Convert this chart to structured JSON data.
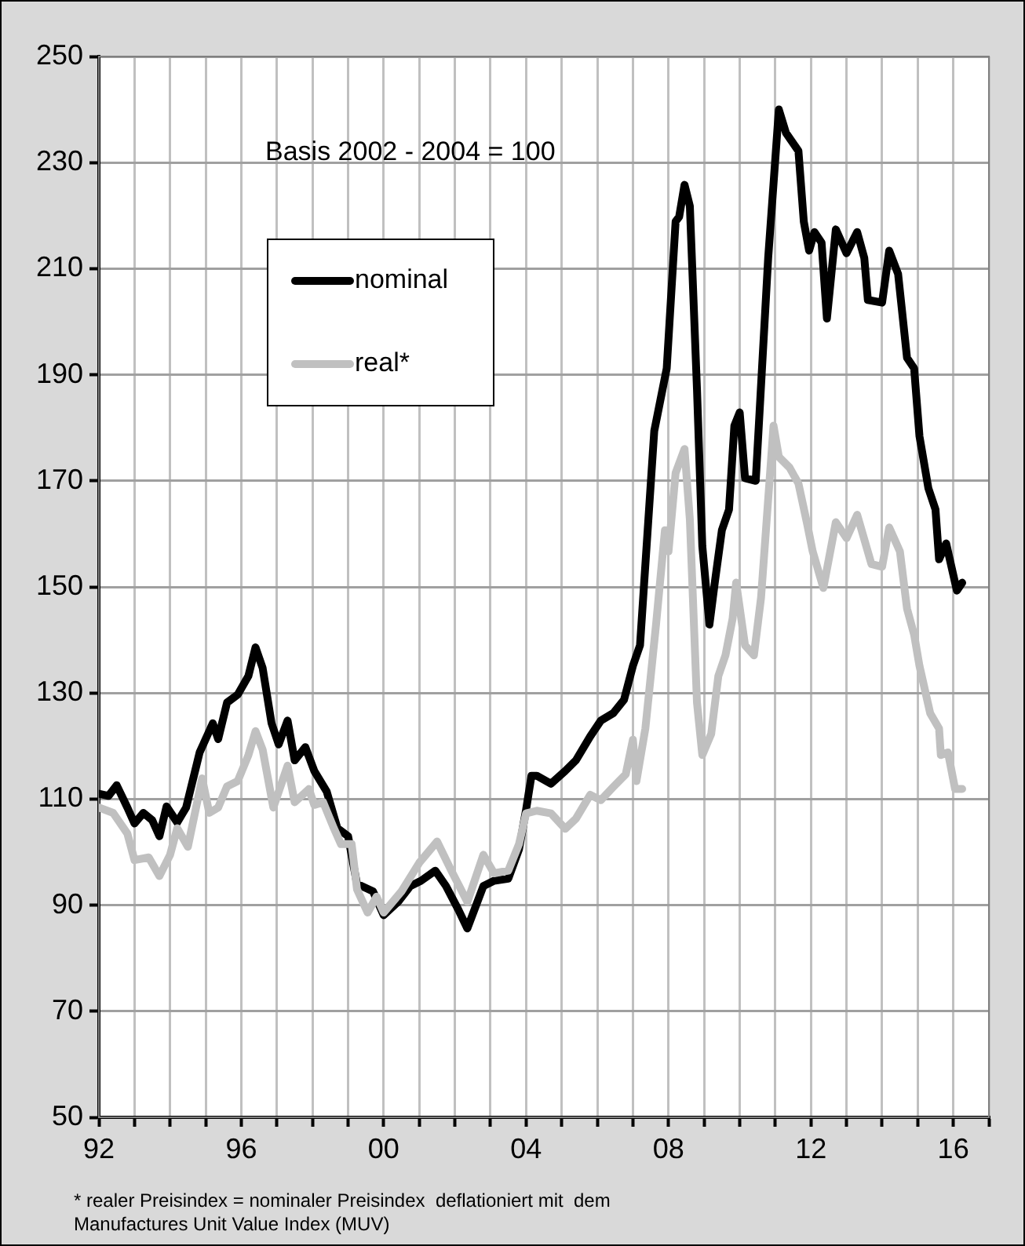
{
  "chart_data": {
    "type": "line",
    "xlim": [
      1992,
      2017
    ],
    "xticks": [
      {
        "value": 1992,
        "label": "92"
      },
      {
        "value": 1993,
        "label": null
      },
      {
        "value": 1994,
        "label": null
      },
      {
        "value": 1995,
        "label": null
      },
      {
        "value": 1996,
        "label": "96"
      },
      {
        "value": 1997,
        "label": null
      },
      {
        "value": 1998,
        "label": null
      },
      {
        "value": 1999,
        "label": null
      },
      {
        "value": 2000,
        "label": "00"
      },
      {
        "value": 2001,
        "label": null
      },
      {
        "value": 2002,
        "label": null
      },
      {
        "value": 2003,
        "label": null
      },
      {
        "value": 2004,
        "label": "04"
      },
      {
        "value": 2005,
        "label": null
      },
      {
        "value": 2006,
        "label": null
      },
      {
        "value": 2007,
        "label": null
      },
      {
        "value": 2008,
        "label": "08"
      },
      {
        "value": 2009,
        "label": null
      },
      {
        "value": 2010,
        "label": null
      },
      {
        "value": 2011,
        "label": null
      },
      {
        "value": 2012,
        "label": "12"
      },
      {
        "value": 2013,
        "label": null
      },
      {
        "value": 2014,
        "label": null
      },
      {
        "value": 2015,
        "label": null
      },
      {
        "value": 2016,
        "label": "16"
      },
      {
        "value": 2017,
        "label": null
      }
    ],
    "ylim": [
      50,
      250
    ],
    "yticks": [
      50,
      70,
      90,
      110,
      130,
      150,
      170,
      190,
      210,
      230,
      250
    ],
    "grid": true,
    "legend": "top left",
    "line_style": "solid",
    "marker": "none",
    "annotations": [
      "Basis 2002 - 2004 = 100",
      "* realer Preisindex = nominaler Preisindex  deflationiert mit  dem  Manufactures Unit Value Index (MUV)"
    ],
    "series": [
      {
        "name": "nominal",
        "color": "#000000",
        "x": [
          1992.0,
          1992.27,
          1992.5,
          1992.8,
          1993.0,
          1993.25,
          1993.5,
          1993.7,
          1993.9,
          1994.2,
          1994.45,
          1994.83,
          1995.2,
          1995.35,
          1995.6,
          1995.9,
          1996.2,
          1996.4,
          1996.6,
          1996.85,
          1997.05,
          1997.3,
          1997.5,
          1997.8,
          1998.05,
          1998.4,
          1998.7,
          1999.0,
          1999.25,
          1999.7,
          2000.0,
          2000.4,
          2000.75,
          2001.05,
          2001.45,
          2001.75,
          2002.1,
          2002.35,
          2002.8,
          2003.1,
          2003.5,
          2003.8,
          2004.0,
          2004.15,
          2004.3,
          2004.7,
          2005.1,
          2005.4,
          2005.8,
          2006.1,
          2006.45,
          2006.75,
          2007.0,
          2007.2,
          2007.6,
          2007.95,
          2008.2,
          2008.3,
          2008.45,
          2008.6,
          2008.8,
          2008.95,
          2009.15,
          2009.3,
          2009.5,
          2009.7,
          2009.85,
          2010.0,
          2010.15,
          2010.45,
          2010.8,
          2011.1,
          2011.3,
          2011.65,
          2011.8,
          2011.95,
          2012.1,
          2012.3,
          2012.45,
          2012.7,
          2013.0,
          2013.3,
          2013.5,
          2013.6,
          2014.0,
          2014.2,
          2014.45,
          2014.7,
          2014.9,
          2015.05,
          2015.3,
          2015.5,
          2015.6,
          2015.8,
          2016.1,
          2016.25
        ],
        "values": [
          111,
          110.6,
          112.6,
          108.4,
          105.4,
          107.4,
          106,
          103,
          108.6,
          105.6,
          108.4,
          118.8,
          124.3,
          121.3,
          128.2,
          129.7,
          133.2,
          138.6,
          134.7,
          124.3,
          120.3,
          124.8,
          117.3,
          119.8,
          115.3,
          111.4,
          104.5,
          103,
          94,
          92.6,
          88.1,
          90.6,
          93.6,
          94.6,
          96.5,
          93.6,
          89.1,
          85.6,
          93.6,
          94.6,
          95,
          100.5,
          108,
          114.4,
          114.4,
          112.9,
          115.3,
          117.3,
          121.8,
          124.8,
          126.2,
          128.7,
          135.1,
          139,
          179.4,
          191.2,
          218.9,
          219.8,
          225.8,
          221.8,
          187.3,
          157.7,
          142.9,
          150.8,
          160.7,
          164.6,
          180.4,
          182.9,
          170.5,
          170,
          212,
          240,
          235.6,
          232.2,
          218.9,
          213.4,
          216.9,
          214.9,
          200.6,
          217.4,
          212.9,
          216.9,
          212,
          204.1,
          203.6,
          213.4,
          209,
          193.2,
          191.2,
          178.4,
          168.6,
          164.6,
          155.2,
          158.2,
          149.3,
          150.8
        ]
      },
      {
        "name": "real*",
        "color": "#c0c0c0",
        "x": [
          1992.0,
          1992.4,
          1992.8,
          1993.0,
          1993.4,
          1993.7,
          1994.0,
          1994.2,
          1994.5,
          1994.9,
          1995.1,
          1995.35,
          1995.6,
          1995.9,
          1996.2,
          1996.4,
          1996.6,
          1996.9,
          1997.3,
          1997.5,
          1997.9,
          1998.05,
          1998.3,
          1998.6,
          1998.8,
          1999.1,
          1999.25,
          1999.55,
          1999.8,
          2000.0,
          2000.5,
          2001.0,
          2001.5,
          2001.9,
          2002.35,
          2002.8,
          2003.1,
          2003.5,
          2003.8,
          2004.0,
          2004.3,
          2004.7,
          2005.1,
          2005.4,
          2005.8,
          2006.1,
          2006.45,
          2006.8,
          2007.0,
          2007.1,
          2007.35,
          2007.65,
          2007.9,
          2008.0,
          2008.2,
          2008.45,
          2008.6,
          2008.8,
          2008.95,
          2009.2,
          2009.4,
          2009.6,
          2009.8,
          2009.9,
          2010.15,
          2010.4,
          2010.6,
          2010.95,
          2011.1,
          2011.4,
          2011.65,
          2011.9,
          2012.05,
          2012.35,
          2012.7,
          2013.0,
          2013.3,
          2013.7,
          2014.0,
          2014.2,
          2014.5,
          2014.7,
          2014.9,
          2015.05,
          2015.35,
          2015.6,
          2015.65,
          2015.85,
          2016.05,
          2016.25
        ],
        "values": [
          108.4,
          107.4,
          103.5,
          98.5,
          99,
          95.5,
          99.5,
          104.5,
          101,
          113.9,
          107.4,
          108.4,
          112.4,
          113.4,
          118.3,
          122.8,
          119.3,
          108.4,
          116.3,
          109.4,
          111.9,
          108.9,
          109.4,
          104.5,
          101.5,
          101.5,
          93,
          88.6,
          91.6,
          88.6,
          92.6,
          98,
          102,
          96.5,
          90.6,
          99.5,
          96,
          96.5,
          101.5,
          107.3,
          107.8,
          107.3,
          104.4,
          106.3,
          110.8,
          109.8,
          112.3,
          114.7,
          121.2,
          113.4,
          123.3,
          142.9,
          160.7,
          156.7,
          171.5,
          176,
          162.7,
          128.2,
          118.3,
          122.3,
          133.2,
          137.1,
          144,
          150.8,
          139,
          137.1,
          148,
          180.4,
          174.5,
          172.5,
          169.5,
          161.7,
          156.7,
          149.8,
          162.2,
          159.2,
          163.6,
          154.3,
          153.8,
          161.2,
          156.7,
          145.9,
          141,
          135.1,
          126.2,
          123.3,
          118.3,
          118.8,
          111.9,
          111.9
        ]
      }
    ]
  }
}
